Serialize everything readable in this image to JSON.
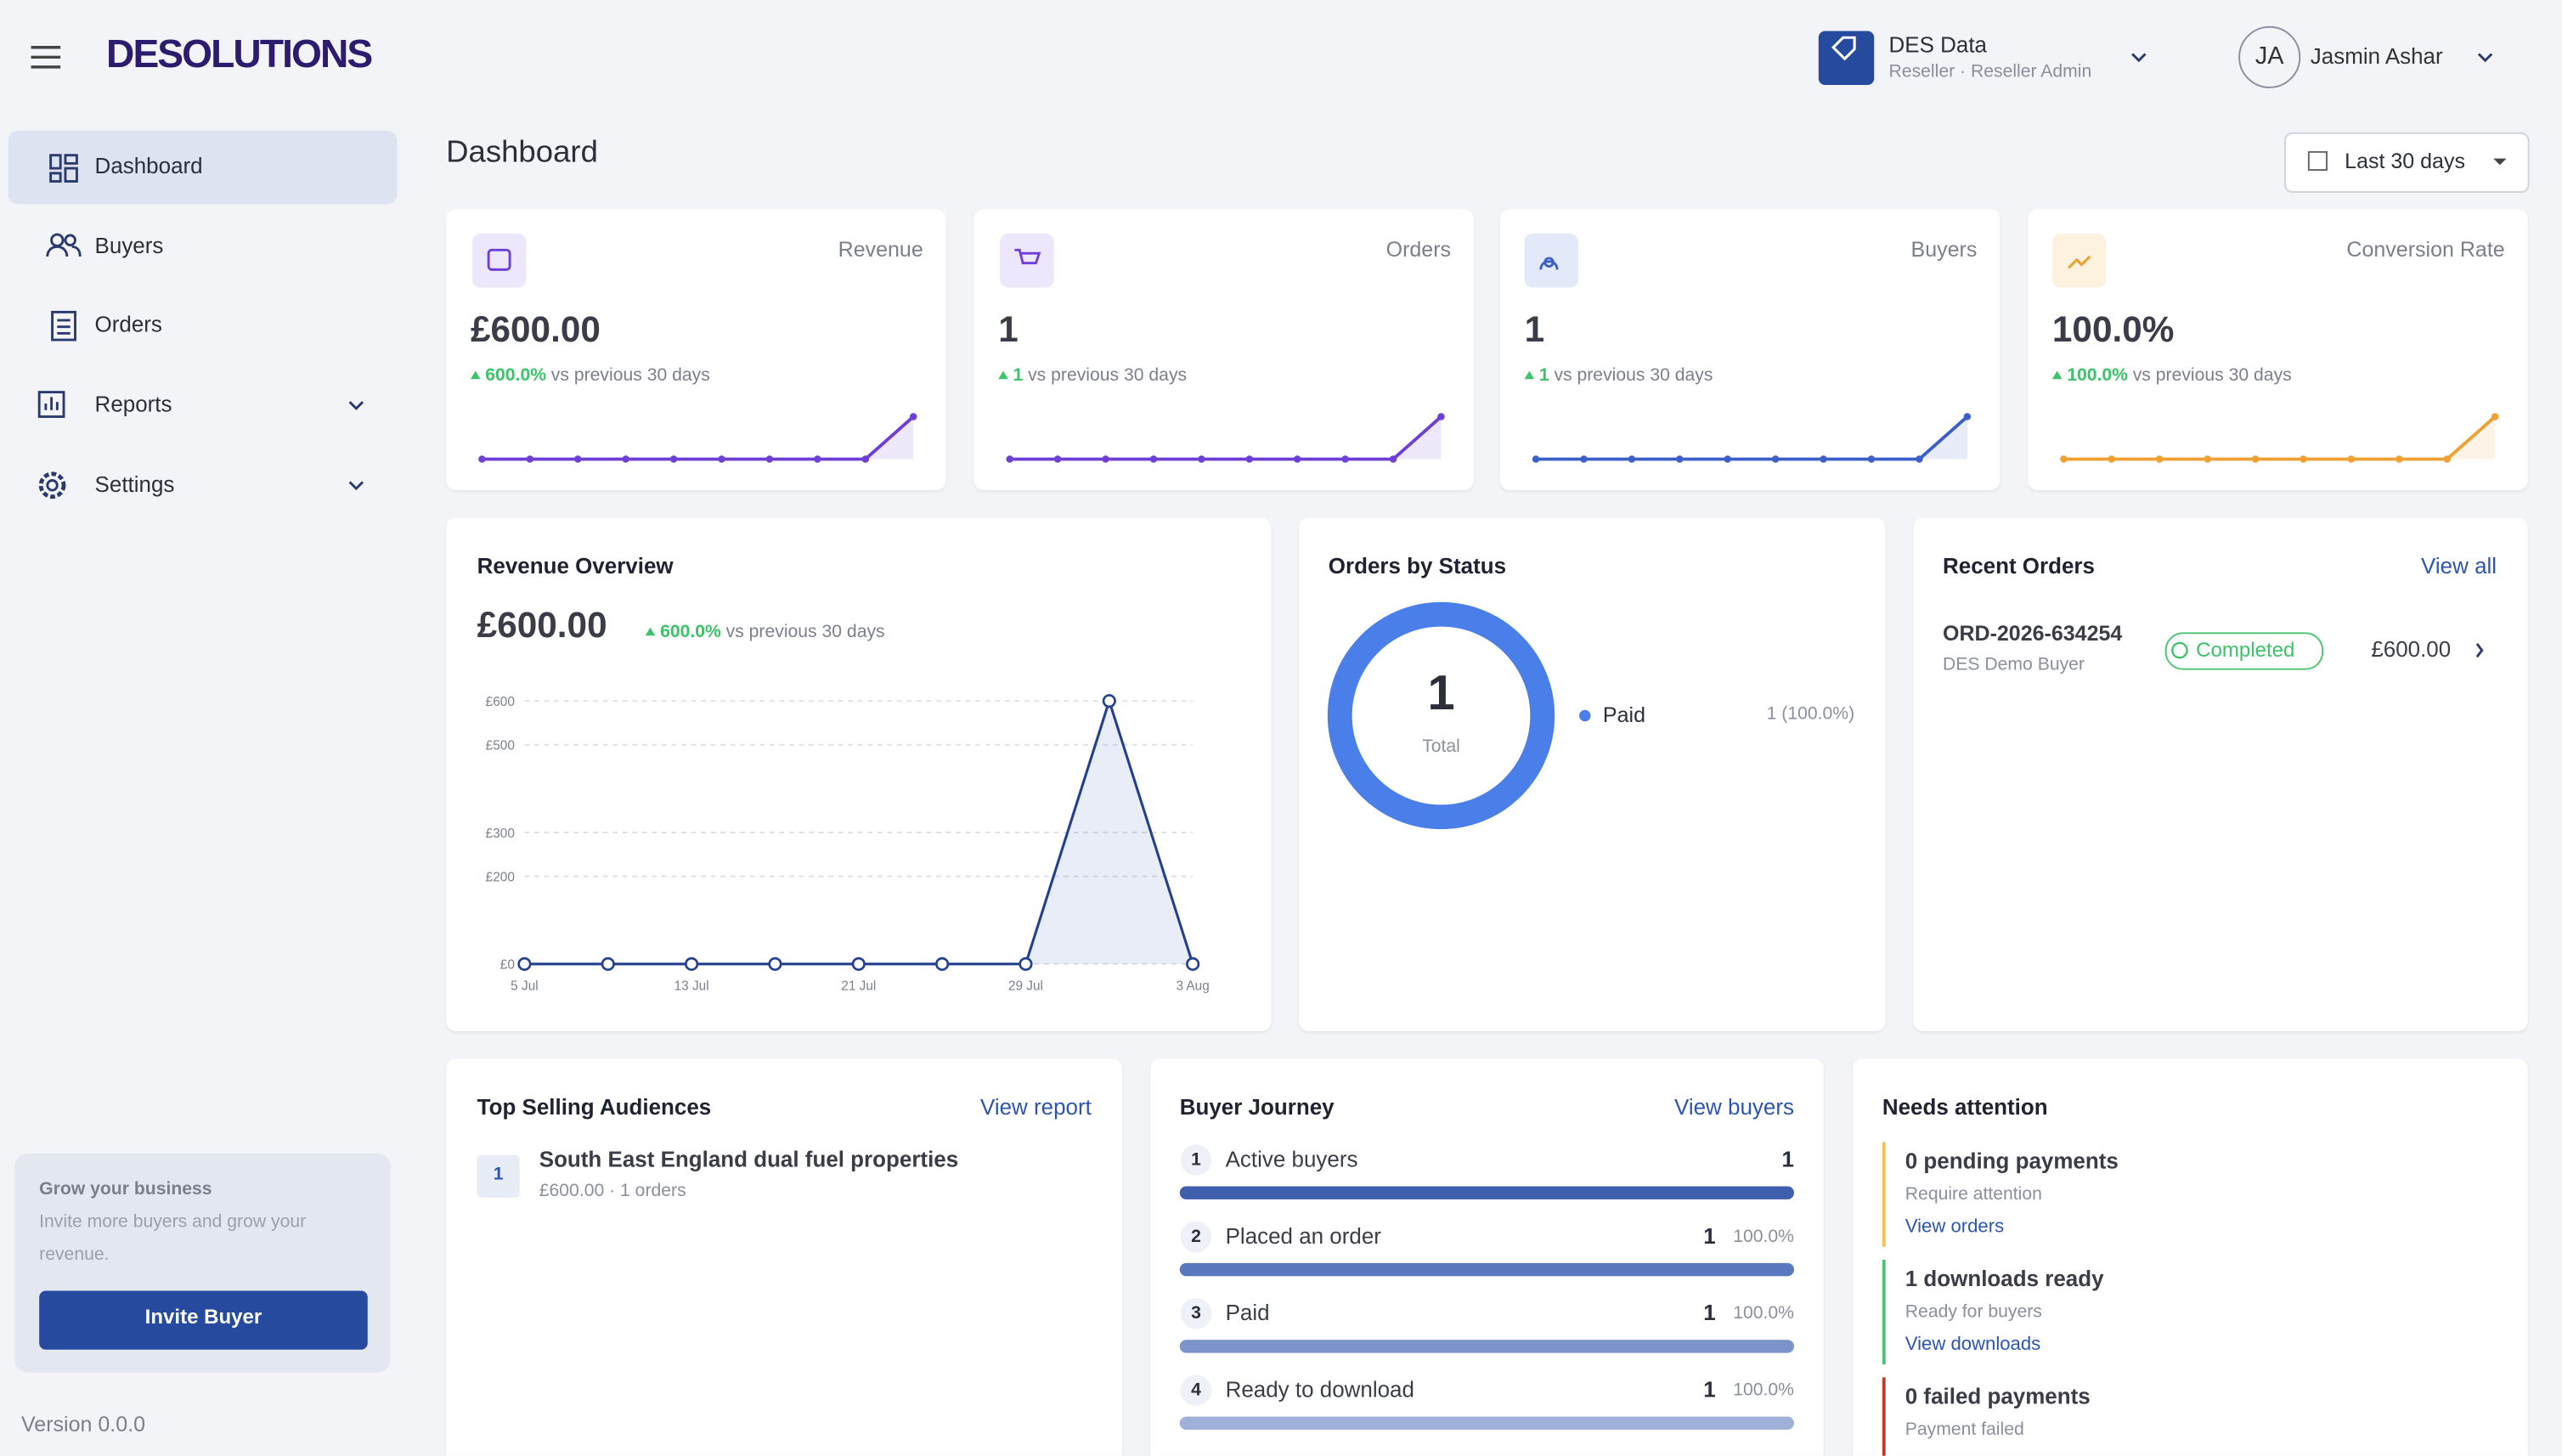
{
  "header": {
    "logo": "DESOLUTIONS",
    "org_name": "DES Data",
    "org_role": "Reseller · Reseller Admin",
    "user_initials": "JA",
    "user_name": "Jasmin Ashar"
  },
  "nav": [
    "Dashboard",
    "Buyers",
    "Orders",
    "Reports",
    "Settings"
  ],
  "promo": {
    "title": "Grow your business",
    "text_1": "Invite more buyers and grow your",
    "text_2": "revenue.",
    "button": "Invite Buyer"
  },
  "version": "Version 0.0.0",
  "page_title": "Dashboard",
  "date_range": "Last 30 days",
  "kpis": [
    {
      "label": "Revenue",
      "value": "£600.00",
      "change": "600.0%",
      "change_text": "vs previous 30 days",
      "sparkline": {
        "type": "line",
        "color": "#6d3fd6",
        "values": [
          0,
          0,
          0,
          0,
          0,
          0,
          0,
          0,
          0,
          600
        ]
      }
    },
    {
      "label": "Orders",
      "value": "1",
      "change": "1",
      "change_text": "vs previous 30 days",
      "sparkline": {
        "type": "line",
        "color": "#6d3fd6",
        "values": [
          0,
          0,
          0,
          0,
          0,
          0,
          0,
          0,
          0,
          1
        ]
      }
    },
    {
      "label": "Buyers",
      "value": "1",
      "change": "1",
      "change_text": "vs previous 30 days",
      "sparkline": {
        "type": "line",
        "color": "#3b5fc9",
        "values": [
          0,
          0,
          0,
          0,
          0,
          0,
          0,
          0,
          0,
          1
        ]
      }
    },
    {
      "label": "Conversion Rate",
      "value": "100.0%",
      "change": "100.0%",
      "change_text": "vs previous 30 days",
      "sparkline": {
        "type": "line",
        "color": "#f0a030",
        "values": [
          0,
          0,
          0,
          0,
          0,
          0,
          0,
          0,
          0,
          100
        ]
      }
    }
  ],
  "revenue_overview": {
    "title": "Revenue Overview",
    "value": "£600.00",
    "change": "600.0%",
    "change_text": "vs previous 30 days",
    "chart": {
      "type": "line",
      "color": "#23408e",
      "categories": [
        "5 Jul",
        null,
        "13 Jul",
        null,
        "21 Jul",
        null,
        "29 Jul",
        null,
        "3 Aug"
      ],
      "values": [
        0,
        0,
        0,
        0,
        0,
        0,
        0,
        600,
        0
      ],
      "ylim": [
        0,
        600
      ],
      "yticks": [
        {
          "value": 0,
          "label": "£0"
        },
        {
          "value": 200,
          "label": "£200"
        },
        {
          "value": 300,
          "label": "£300"
        },
        {
          "value": 500,
          "label": "£500"
        },
        {
          "value": 600,
          "label": "£600"
        }
      ],
      "grid": true
    }
  },
  "orders_by_status": {
    "title": "Orders by Status",
    "total": "1",
    "total_label": "Total",
    "chart": {
      "type": "pie",
      "categories": [
        "Paid"
      ],
      "values": [
        1
      ],
      "value_labels": [
        "1 (100.0%)"
      ],
      "colors": [
        "#4a7ee8"
      ]
    }
  },
  "recent_orders": {
    "title": "Recent Orders",
    "link": "View all",
    "orders": [
      {
        "id": "ORD-2026-634254",
        "buyer": "DES Demo Buyer",
        "status": "Completed",
        "amount": "£600.00"
      }
    ]
  },
  "top_audiences": {
    "title": "Top Selling Audiences",
    "link": "View report",
    "items": [
      {
        "rank": "1",
        "name": "South East England dual fuel properties",
        "meta": "£600.00 · 1 orders"
      }
    ]
  },
  "buyer_journey": {
    "title": "Buyer Journey",
    "link": "View buyers",
    "chart": {
      "type": "bar",
      "colors": [
        "#3f5fae",
        "#5a78bd",
        "#7a93c9",
        "#9fb1d8"
      ],
      "ranks": [
        "1",
        "2",
        "3",
        "4"
      ],
      "categories": [
        "Active buyers",
        "Placed an order",
        "Paid",
        "Ready to download"
      ],
      "values": [
        1,
        1,
        1,
        1
      ],
      "shares": [
        null,
        "100.0%",
        "100.0%",
        "100.0%"
      ]
    }
  },
  "needs_attention": {
    "title": "Needs attention",
    "items": [
      {
        "title": "0 pending payments",
        "text": "Require attention",
        "link": "View orders",
        "color": "#f2c14e"
      },
      {
        "title": "1 downloads ready",
        "text": "Ready for buyers",
        "link": "View downloads",
        "color": "#4cc36e"
      },
      {
        "title": "0 failed payments",
        "text": "Payment failed",
        "color": "#c0392b"
      }
    ]
  }
}
